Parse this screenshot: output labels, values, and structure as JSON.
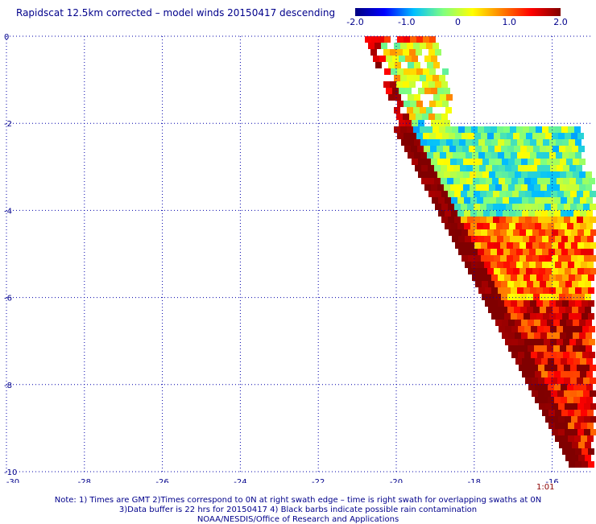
{
  "title": "Rapidscat 12.5km corrected – model winds 20150417 descending",
  "colorbar": {
    "min": -2.0,
    "max": 2.0,
    "tick_labels": [
      "-2.0",
      "-1.0",
      "0",
      "1.0",
      "2.0"
    ],
    "tick_values": [
      -2.0,
      -1.0,
      0.0,
      1.0,
      2.0
    ],
    "colors": [
      "#000080",
      "#0000ff",
      "#00bfff",
      "#7fff7f",
      "#ffff00",
      "#ff7f00",
      "#ff0000",
      "#800000"
    ]
  },
  "chart_data": {
    "type": "heatmap",
    "title": "Rapidscat 12.5km corrected – model winds 20150417 descending",
    "xlim": [
      -30,
      -15
    ],
    "ylim": [
      -10,
      0
    ],
    "x_ticks": [
      -30,
      -28,
      -26,
      -24,
      -22,
      -20,
      -18,
      -16
    ],
    "y_ticks": [
      0,
      -2,
      -4,
      -6,
      -8,
      -10
    ],
    "grid": true,
    "value_range": [
      -2.0,
      2.0
    ],
    "swath_regions": [
      {
        "lat_range": [
          -0.1,
          -1.9
        ],
        "lon_range": [
          -20.7,
          -19.0
        ],
        "typical_value": 0.2
      },
      {
        "lat_range": [
          -1.9,
          -4.0
        ],
        "lon_range": [
          -20.0,
          -15.3
        ],
        "typical_value": -0.3
      },
      {
        "lat_range": [
          -4.0,
          -6.0
        ],
        "lon_range": [
          -18.7,
          -15.1
        ],
        "typical_value": 0.9
      },
      {
        "lat_range": [
          -6.0,
          -9.7
        ],
        "lon_range": [
          -17.0,
          -15.1
        ],
        "typical_value": 1.5
      }
    ]
  },
  "pass_time": "1:01",
  "notes": [
    "Note: 1) Times are GMT 2)Times correspond to 0N at right swath edge – time is right swath for overlapping swaths at 0N",
    "3)Data buffer is 22 hrs for 20150417 4) Black barbs indicate possible rain contamination",
    "NOAA/NESDIS/Office of Research and Applications"
  ]
}
